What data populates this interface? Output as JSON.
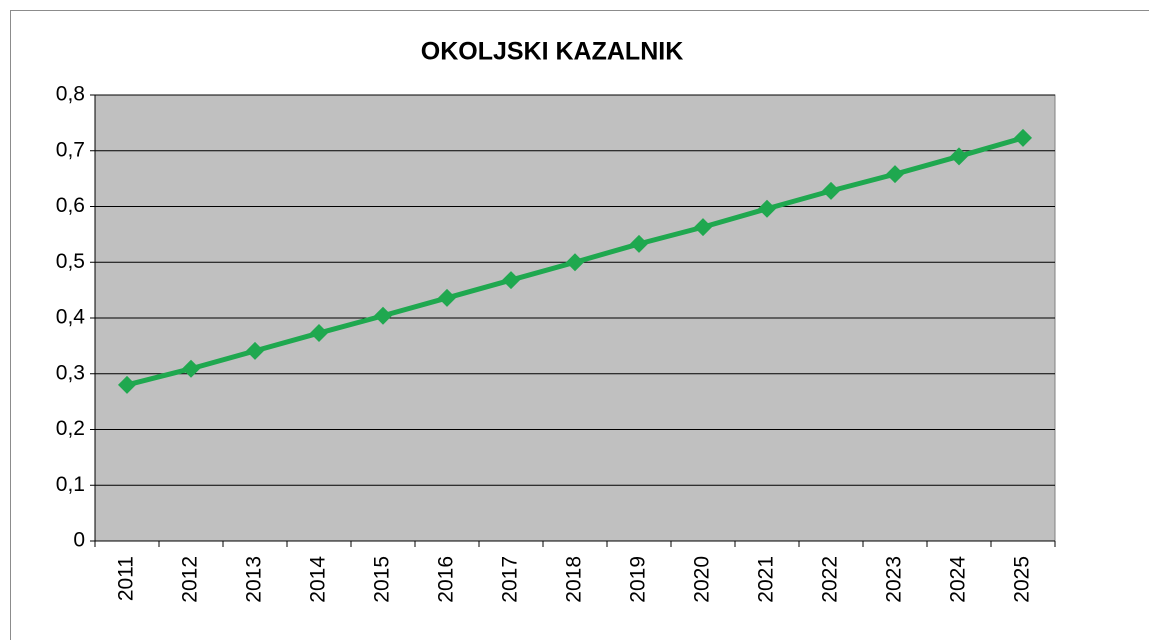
{
  "chart_data": {
    "type": "line",
    "title": "OKOLJSKI KAZALNIK",
    "categories": [
      "2011",
      "2012",
      "2013",
      "2014",
      "2015",
      "2016",
      "2017",
      "2018",
      "2019",
      "2020",
      "2021",
      "2022",
      "2023",
      "2024",
      "2025"
    ],
    "values": [
      0.28,
      0.309,
      0.341,
      0.373,
      0.404,
      0.436,
      0.468,
      0.5,
      0.533,
      0.563,
      0.596,
      0.628,
      0.658,
      0.69,
      0.723
    ],
    "color": "#1fa84f",
    "ylim": [
      0,
      0.8
    ],
    "yticks": [
      0,
      {
        "value": 0.1,
        "label": "0,1"
      },
      {
        "value": 0.2,
        "label": "0,2"
      },
      {
        "value": 0.3,
        "label": "0,3"
      },
      {
        "value": 0.4,
        "label": "0,4"
      },
      {
        "value": 0.5,
        "label": "0,5"
      },
      {
        "value": 0.6,
        "label": "0,6"
      },
      {
        "value": 0.7,
        "label": "0,7"
      },
      {
        "value": 0.8,
        "label": "0,8"
      }
    ],
    "grid": true
  }
}
